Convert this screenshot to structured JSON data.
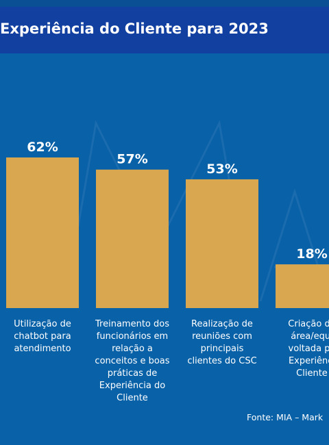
{
  "header": {
    "title": "Experiência do Cliente para 2023"
  },
  "chart_data": {
    "type": "bar",
    "categories": [
      "Utilização de\nchatbot para\natendimento",
      "Treinamento dos\nfuncionários em\nrelação a\nconceitos e boas\npráticas de\nExperiência do\nCliente",
      "Realização de\nreuniões com\nprincipais\nclientes do CSC",
      "Criação de\nárea/equi\nvoltada pa\nExperiênci\nCliente"
    ],
    "values": [
      62,
      57,
      53,
      18
    ],
    "value_labels": [
      "62%",
      "57%",
      "53%",
      "18%"
    ],
    "bar_color": "#d8a74f",
    "ylim": [
      0,
      62
    ]
  },
  "source": "Fonte: MIA – Mark",
  "colors": {
    "background": "#0961a8",
    "header": "#1240a0",
    "bar": "#d8a74f",
    "text": "#ffffff"
  }
}
